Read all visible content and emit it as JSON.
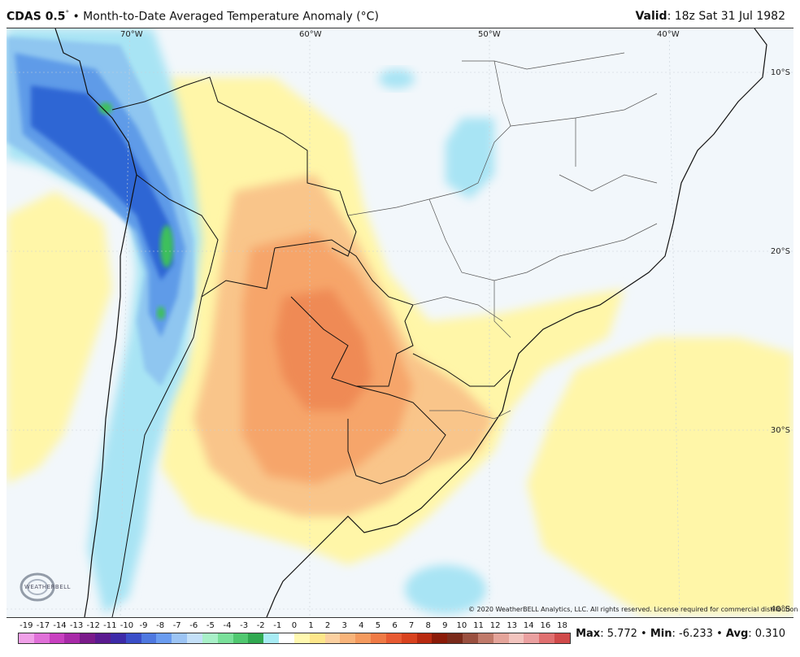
{
  "header": {
    "model": "CDAS 0.5",
    "degree": "°",
    "bullet": "•",
    "title": "Month-to-Date Averaged Temperature Anomaly (",
    "unit": "°C",
    "title_close": ")",
    "valid_label": "Valid",
    "valid_value": ": 18z Sat 31 Jul 1982"
  },
  "map": {
    "lon_labels": [
      "70°W",
      "60°W",
      "50°W",
      "40°W"
    ],
    "lat_labels": [
      "10°S",
      "20°S",
      "30°S",
      "40°S"
    ],
    "copyright": "© 2020 WeatherBELL Analytics, LLC. All rights reserved. License required for commercial distribution",
    "logo_text": "WEATHERBELL",
    "colors": {
      "ocean": "#f2f7fb",
      "light_yellow": "#fff6a8",
      "yellow": "#fbe07a",
      "light_orange": "#f9c58a",
      "orange": "#f6a56a",
      "dark_orange": "#ef8a55",
      "red": "#e24a2c",
      "light_cyan": "#a8e4f4",
      "light_blue": "#8fc6f0",
      "blue": "#5e9be8",
      "dark_blue": "#2f66d4",
      "green": "#3cc05c"
    }
  },
  "legend": {
    "labels": [
      "-19",
      "-17",
      "-14",
      "-13",
      "-12",
      "-11",
      "-10",
      "-9",
      "-8",
      "-7",
      "-6",
      "-5",
      "-4",
      "-3",
      "-2",
      "-1",
      "0",
      "1",
      "2",
      "3",
      "4",
      "5",
      "6",
      "7",
      "8",
      "9",
      "10",
      "11",
      "12",
      "13",
      "14",
      "16",
      "18"
    ],
    "colors": [
      "#f0a0e8",
      "#e070d8",
      "#c840c0",
      "#a82aa8",
      "#7a1a8a",
      "#5a1a90",
      "#3d2aa8",
      "#3a4ec8",
      "#4e78e0",
      "#6a9cf0",
      "#9cc4f4",
      "#c4e0f8",
      "#a8f0c8",
      "#7ae09a",
      "#50c870",
      "#30a850",
      "#a8ecf4",
      "#ffffff",
      "#fff8b0",
      "#fde68a",
      "#fbd0a0",
      "#f8b47a",
      "#f49a5e",
      "#ef7a45",
      "#e75a32",
      "#d8421e",
      "#b82a10",
      "#8a1a08",
      "#7a2a1a",
      "#9a5040",
      "#c07a6a",
      "#e4a49a",
      "#f2c4be",
      "#eaa0a0",
      "#e07070",
      "#d04a4a"
    ]
  },
  "stats": {
    "max_label": "Max",
    "max_value": ": 5.772",
    "min_label": "Min",
    "min_value": ": -6.233",
    "avg_label": "Avg",
    "avg_value": ": 0.310",
    "sep": " • "
  }
}
